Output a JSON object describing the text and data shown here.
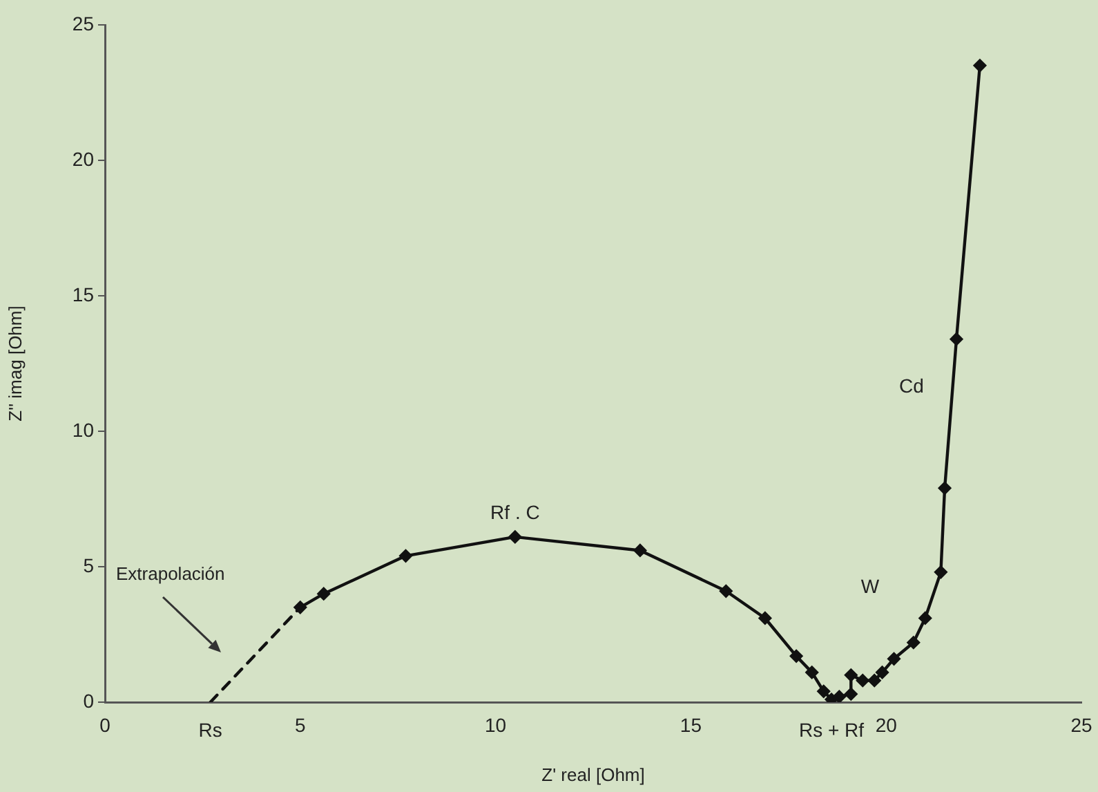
{
  "chart_data": {
    "type": "line",
    "xlabel": "Z' real [Ohm]",
    "ylabel": "Z'' imag [Ohm]",
    "xlim": [
      0,
      25
    ],
    "xticks": [
      0,
      5,
      10,
      15,
      20,
      25
    ],
    "ylim": [
      0,
      25
    ],
    "yticks": [
      0,
      5,
      10,
      15,
      20,
      25
    ],
    "grid": false,
    "legend": false,
    "marker": "diamond",
    "line_style": "solid",
    "series": [
      {
        "color": "#111111",
        "x": [
          5.0,
          5.6,
          7.7,
          10.5,
          13.7,
          15.9,
          16.9,
          17.7,
          18.1,
          18.4,
          18.6,
          18.8,
          19.1,
          19.1,
          19.4,
          19.7,
          19.9,
          20.2,
          20.7,
          21.0,
          21.4,
          21.5,
          21.8,
          22.4
        ],
        "values": [
          3.5,
          4.0,
          5.4,
          6.1,
          5.6,
          4.1,
          3.1,
          1.7,
          1.1,
          0.4,
          0.1,
          0.2,
          0.3,
          1.0,
          0.8,
          0.8,
          1.1,
          1.6,
          2.2,
          3.1,
          4.8,
          7.9,
          13.4,
          23.5
        ]
      },
      {
        "color": "#111111",
        "x": [
          2.7,
          5.0
        ],
        "values": [
          0,
          3.5
        ],
        "line_style": "dashed",
        "marker": "none"
      }
    ],
    "annotations": [
      {
        "text": "Rf . C",
        "x": 10.5,
        "y": 6.1
      },
      "W",
      "Cd",
      {
        "text": "Rs",
        "x": 2.7,
        "y": 0
      },
      {
        "text": "Rs + Rf",
        "x": 18.6,
        "y": 0
      },
      "Extrapolación"
    ]
  }
}
